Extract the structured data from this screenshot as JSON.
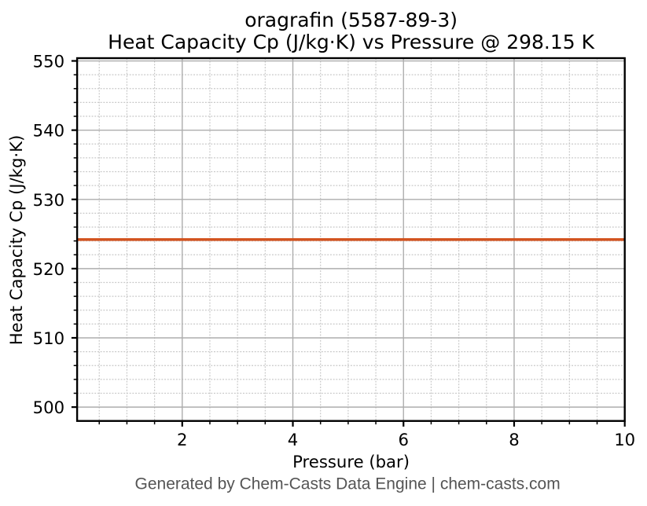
{
  "chart_data": {
    "type": "line",
    "title": "oragrafin (5587-89-3)",
    "subtitle": "Heat Capacity Cp (J/kg·K) vs Pressure @ 298.15 K",
    "xlabel": "Pressure (bar)",
    "ylabel": "Heat Capacity Cp (J/kg·K)",
    "xlim": [
      0.1,
      10
    ],
    "ylim": [
      498.0,
      550.4
    ],
    "xticks": [
      2,
      4,
      6,
      8,
      10
    ],
    "yticks": [
      500,
      510,
      520,
      530,
      540,
      550
    ],
    "x_minor_step": 0.5,
    "y_minor_step": 2,
    "grid": {
      "major": true,
      "minor": true,
      "major_style": "solid",
      "minor_style": "dotted"
    },
    "legend": "none",
    "series": [
      {
        "name": "Heat Capacity Cp",
        "x": [
          0.1,
          10
        ],
        "y": [
          524.2,
          524.2
        ],
        "color": "#d2521e"
      }
    ],
    "footer": "Generated by Chem-Casts Data Engine | chem-casts.com",
    "colors": {
      "background": "#ffffff",
      "text": "#000000",
      "footer_text": "#555555",
      "grid_major": "#adadad",
      "grid_minor": "#c8c8c8",
      "spine": "#000000",
      "tick": "#000000"
    }
  }
}
